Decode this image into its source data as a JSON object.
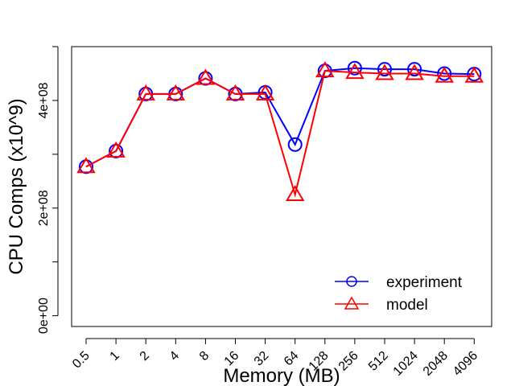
{
  "chart_data": {
    "type": "line",
    "title": "",
    "xlabel": "Memory (MB)",
    "ylabel": "CPU Comps (x10^9)",
    "categories": [
      "0.5",
      "1",
      "2",
      "4",
      "8",
      "16",
      "32",
      "64",
      "128",
      "256",
      "512",
      "1024",
      "2048",
      "4096"
    ],
    "ylim": [
      -20000000,
      500000000
    ],
    "yticks": [
      {
        "value": 0,
        "label": "0e+00"
      },
      {
        "value": 100000000,
        "label": ""
      },
      {
        "value": 200000000,
        "label": "2e+08"
      },
      {
        "value": 300000000,
        "label": ""
      },
      {
        "value": 400000000,
        "label": "4e+08"
      },
      {
        "value": 500000000,
        "label": ""
      }
    ],
    "grid": false,
    "legend_position": "bottom-right",
    "series": [
      {
        "name": "experiment",
        "color": "#0000ff",
        "marker": "circle",
        "values": [
          277000000,
          306000000,
          412000000,
          412000000,
          441000000,
          412000000,
          415000000,
          318000000,
          455000000,
          460000000,
          458000000,
          458000000,
          450000000,
          449000000
        ]
      },
      {
        "name": "model",
        "color": "#ff0000",
        "marker": "triangle",
        "values": [
          277000000,
          306000000,
          412000000,
          412000000,
          441000000,
          412000000,
          412000000,
          225000000,
          455000000,
          452000000,
          450000000,
          450000000,
          445000000,
          445000000
        ]
      }
    ]
  }
}
